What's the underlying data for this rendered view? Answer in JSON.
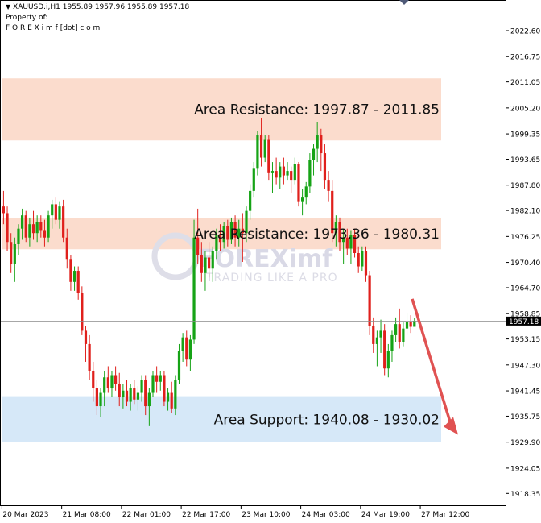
{
  "header": {
    "symbol_line": "XAUUSD.i,H1  1955.89 1957.96 1955.89 1957.18",
    "property_line": "Property of:",
    "owner_line": "F O R E X i m f [dot] c o m"
  },
  "watermark": {
    "brand": "FOREXimf",
    "tagline": "TRADING LIKE A PRO"
  },
  "colors": {
    "bull": "#16a316",
    "bear": "#e0201c",
    "resistance_zone": "#fbdccd",
    "support_zone": "#d6e8f8",
    "arrow": "#e05252",
    "grid": "#000000"
  },
  "chart_data": {
    "type": "candlestick",
    "ylim": [
      1915.5,
      2029.5
    ],
    "y_ticks": [
      2022.6,
      2016.75,
      2011.05,
      2005.2,
      1999.35,
      1993.65,
      1987.8,
      1982.1,
      1976.25,
      1970.4,
      1964.7,
      1958.85,
      1953.15,
      1947.3,
      1941.45,
      1935.75,
      1929.9,
      1924.05,
      1918.35
    ],
    "y_tick_labels": [
      "2022.60",
      "2016.75",
      "2011.05",
      "2005.20",
      "1999.35",
      "1993.65",
      "1987.80",
      "1982.10",
      "1976.25",
      "1970.40",
      "1964.70",
      "1958.85",
      "1953.15",
      "1947.30",
      "1941.45",
      "1935.75",
      "1929.90",
      "1924.05",
      "1918.35"
    ],
    "x_tick_labels": [
      "20 Mar 2023",
      "21 Mar 08:00",
      "22 Mar 01:00",
      "22 Mar 17:00",
      "23 Mar 10:00",
      "24 Mar 03:00",
      "24 Mar 19:00",
      "27 Mar 12:00"
    ],
    "x_tick_bars": [
      0,
      16,
      32,
      48,
      64,
      80,
      96,
      112
    ],
    "current_price": 1957.18,
    "current_price_label": "1957.18",
    "zones": [
      {
        "kind": "resistance",
        "label": "Area Resistance: 1997.87 - 2011.85",
        "from": 1997.87,
        "to": 2011.85
      },
      {
        "kind": "resistance",
        "label": "Area Resistance: 1973.36 - 1980.31",
        "from": 1973.36,
        "to": 1980.31
      },
      {
        "kind": "support",
        "label": "Area Support: 1940.08 - 1930.02",
        "from": 1940.08,
        "to": 1930.02
      }
    ],
    "forecast_arrow": {
      "direction": "down",
      "from": 1960.0,
      "to": 1939.0
    },
    "candles": [
      [
        1983.0,
        1986.5,
        1979.0,
        1981.5
      ],
      [
        1981.5,
        1983.0,
        1973.0,
        1975.0
      ],
      [
        1975.0,
        1977.0,
        1968.0,
        1970.0
      ],
      [
        1970.0,
        1976.0,
        1966.0,
        1974.5
      ],
      [
        1974.5,
        1979.0,
        1972.0,
        1978.0
      ],
      [
        1978.0,
        1982.5,
        1975.5,
        1981.0
      ],
      [
        1981.0,
        1982.0,
        1975.0,
        1976.0
      ],
      [
        1976.0,
        1980.5,
        1974.0,
        1979.0
      ],
      [
        1979.0,
        1982.0,
        1975.5,
        1977.0
      ],
      [
        1977.0,
        1981.0,
        1975.0,
        1979.5
      ],
      [
        1979.5,
        1981.0,
        1976.0,
        1977.5
      ],
      [
        1977.5,
        1980.0,
        1974.0,
        1976.0
      ],
      [
        1976.0,
        1982.0,
        1975.0,
        1981.0
      ],
      [
        1981.0,
        1984.5,
        1978.0,
        1983.5
      ],
      [
        1983.5,
        1985.0,
        1979.0,
        1980.0
      ],
      [
        1980.0,
        1984.0,
        1978.0,
        1983.0
      ],
      [
        1983.0,
        1984.5,
        1975.0,
        1976.0
      ],
      [
        1976.0,
        1978.0,
        1969.0,
        1971.0
      ],
      [
        1971.0,
        1972.0,
        1964.0,
        1966.0
      ],
      [
        1966.0,
        1969.5,
        1964.0,
        1968.5
      ],
      [
        1968.5,
        1969.5,
        1962.0,
        1963.5
      ],
      [
        1963.5,
        1965.0,
        1954.0,
        1955.0
      ],
      [
        1955.0,
        1956.0,
        1948.0,
        1952.0
      ],
      [
        1952.0,
        1954.0,
        1944.0,
        1946.0
      ],
      [
        1946.0,
        1948.0,
        1939.0,
        1942.0
      ],
      [
        1942.0,
        1944.0,
        1936.0,
        1938.0
      ],
      [
        1938.0,
        1942.0,
        1935.5,
        1941.0
      ],
      [
        1941.0,
        1946.0,
        1938.0,
        1944.5
      ],
      [
        1944.5,
        1947.0,
        1941.0,
        1942.0
      ],
      [
        1942.0,
        1946.0,
        1940.0,
        1945.0
      ],
      [
        1945.0,
        1947.0,
        1941.5,
        1943.0
      ],
      [
        1943.0,
        1945.5,
        1938.0,
        1940.0
      ],
      [
        1940.0,
        1943.0,
        1937.5,
        1941.5
      ],
      [
        1941.5,
        1944.0,
        1938.0,
        1939.0
      ],
      [
        1939.0,
        1943.0,
        1937.0,
        1942.0
      ],
      [
        1942.0,
        1944.0,
        1938.5,
        1939.5
      ],
      [
        1939.5,
        1942.5,
        1937.0,
        1941.0
      ],
      [
        1941.0,
        1945.0,
        1939.0,
        1944.0
      ],
      [
        1944.0,
        1945.0,
        1936.0,
        1938.0
      ],
      [
        1938.0,
        1942.0,
        1933.5,
        1941.0
      ],
      [
        1941.0,
        1946.0,
        1940.0,
        1945.0
      ],
      [
        1945.0,
        1947.0,
        1941.0,
        1943.5
      ],
      [
        1943.5,
        1946.0,
        1941.5,
        1945.0
      ],
      [
        1945.0,
        1946.0,
        1938.0,
        1939.0
      ],
      [
        1939.0,
        1942.0,
        1937.0,
        1941.0
      ],
      [
        1941.0,
        1943.5,
        1936.5,
        1937.5
      ],
      [
        1937.5,
        1945.0,
        1936.0,
        1944.0
      ],
      [
        1944.0,
        1952.0,
        1943.0,
        1950.5
      ],
      [
        1950.5,
        1954.5,
        1948.0,
        1953.5
      ],
      [
        1953.5,
        1955.0,
        1947.0,
        1948.5
      ],
      [
        1948.5,
        1954.0,
        1946.0,
        1953.0
      ],
      [
        1953.0,
        1980.0,
        1952.0,
        1976.0
      ],
      [
        1976.0,
        1982.5,
        1970.0,
        1972.0
      ],
      [
        1972.0,
        1975.0,
        1966.0,
        1968.0
      ],
      [
        1968.0,
        1973.0,
        1964.0,
        1971.5
      ],
      [
        1971.5,
        1975.0,
        1967.0,
        1969.0
      ],
      [
        1969.0,
        1974.0,
        1966.0,
        1973.0
      ],
      [
        1973.0,
        1978.0,
        1971.0,
        1976.5
      ],
      [
        1976.5,
        1979.0,
        1973.0,
        1975.0
      ],
      [
        1975.0,
        1979.5,
        1973.5,
        1978.5
      ],
      [
        1978.5,
        1980.0,
        1974.0,
        1975.5
      ],
      [
        1975.5,
        1980.5,
        1974.5,
        1979.5
      ],
      [
        1979.5,
        1981.0,
        1974.0,
        1976.0
      ],
      [
        1976.0,
        1980.0,
        1974.0,
        1978.0
      ],
      [
        1978.0,
        1981.5,
        1970.5,
        1977.0
      ],
      [
        1977.0,
        1983.0,
        1975.0,
        1982.0
      ],
      [
        1982.0,
        1988.0,
        1980.0,
        1986.5
      ],
      [
        1986.5,
        1993.0,
        1985.0,
        1991.5
      ],
      [
        1991.5,
        2000.0,
        1990.0,
        1999.0
      ],
      [
        1999.0,
        2003.0,
        1992.0,
        1994.0
      ],
      [
        1994.0,
        1999.0,
        1993.0,
        1998.0
      ],
      [
        1998.0,
        1999.0,
        1989.0,
        1990.5
      ],
      [
        1990.5,
        1993.0,
        1986.0,
        1991.0
      ],
      [
        1991.0,
        1994.0,
        1988.0,
        1989.5
      ],
      [
        1989.5,
        1993.0,
        1987.0,
        1992.0
      ],
      [
        1992.0,
        1994.0,
        1988.0,
        1990.0
      ],
      [
        1990.0,
        1993.0,
        1989.0,
        1991.0
      ],
      [
        1991.0,
        1992.0,
        1986.0,
        1989.0
      ],
      [
        1989.0,
        1994.0,
        1988.0,
        1992.5
      ],
      [
        1992.5,
        1993.0,
        1983.0,
        1984.0
      ],
      [
        1984.0,
        1987.0,
        1981.0,
        1985.0
      ],
      [
        1985.0,
        1988.5,
        1983.5,
        1987.5
      ],
      [
        1987.5,
        1995.0,
        1986.0,
        1993.5
      ],
      [
        1993.5,
        1997.0,
        1990.0,
        1996.0
      ],
      [
        1996.0,
        2002.0,
        1993.0,
        1999.0
      ],
      [
        1999.0,
        2000.5,
        1991.0,
        1995.0
      ],
      [
        1995.0,
        1997.0,
        1987.0,
        1989.0
      ],
      [
        1989.0,
        1991.0,
        1984.0,
        1986.5
      ],
      [
        1986.5,
        1989.0,
        1975.0,
        1977.0
      ],
      [
        1977.0,
        1981.0,
        1974.0,
        1979.5
      ],
      [
        1979.5,
        1980.5,
        1973.0,
        1975.0
      ],
      [
        1975.0,
        1978.0,
        1970.0,
        1976.0
      ],
      [
        1976.0,
        1978.0,
        1972.0,
        1973.5
      ],
      [
        1973.5,
        1977.5,
        1970.0,
        1976.5
      ],
      [
        1976.5,
        1978.0,
        1971.5,
        1972.5
      ],
      [
        1972.5,
        1974.0,
        1968.0,
        1969.5
      ],
      [
        1969.5,
        1974.0,
        1968.5,
        1973.0
      ],
      [
        1973.0,
        1974.0,
        1966.0,
        1967.5
      ],
      [
        1967.5,
        1968.5,
        1954.0,
        1956.0
      ],
      [
        1956.0,
        1958.0,
        1950.0,
        1952.0
      ],
      [
        1952.0,
        1955.0,
        1947.0,
        1953.5
      ],
      [
        1953.5,
        1957.5,
        1950.0,
        1955.0
      ],
      [
        1955.0,
        1956.5,
        1945.0,
        1946.5
      ],
      [
        1946.5,
        1952.0,
        1944.5,
        1950.5
      ],
      [
        1950.5,
        1955.0,
        1948.0,
        1954.0
      ],
      [
        1954.0,
        1958.0,
        1952.5,
        1956.5
      ],
      [
        1956.5,
        1960.0,
        1951.0,
        1952.5
      ],
      [
        1952.5,
        1957.0,
        1951.5,
        1955.5
      ],
      [
        1955.5,
        1959.0,
        1954.0,
        1957.0
      ],
      [
        1957.0,
        1958.5,
        1954.5,
        1955.89
      ],
      [
        1955.89,
        1957.96,
        1955.89,
        1957.18
      ]
    ]
  }
}
